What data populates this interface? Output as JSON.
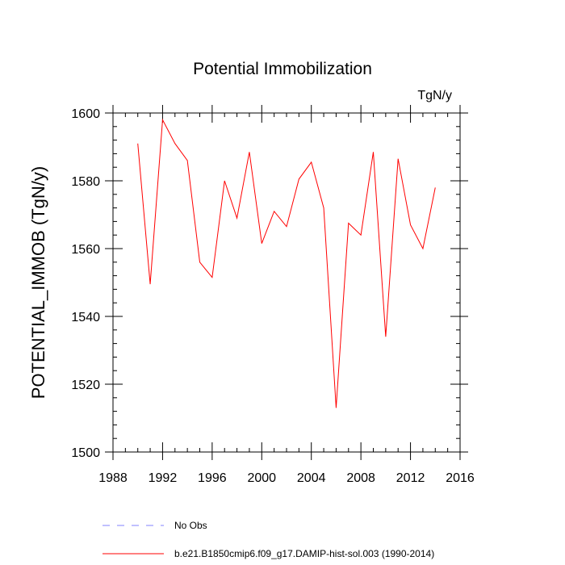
{
  "chart_data": {
    "type": "line",
    "title": "Potential Immobilization",
    "units_label": "TgN/y",
    "xlabel": "",
    "ylabel": "POTENTIAL_IMMOB  (TgN/y)",
    "xlim": [
      1988,
      2016
    ],
    "ylim": [
      1500,
      1600
    ],
    "xticks": [
      1988,
      1992,
      1996,
      2000,
      2004,
      2008,
      2012,
      2016
    ],
    "yticks": [
      1500,
      1520,
      1540,
      1560,
      1580,
      1600
    ],
    "grid": false,
    "legend_position": "bottom-left",
    "series": [
      {
        "name": "b.e21.B1850cmip6.f09_g17.DAMIP-hist-sol.003 (1990-2014)",
        "color": "#ff0000",
        "dash": "solid",
        "x": [
          1990,
          1991,
          1992,
          1993,
          1994,
          1995,
          1996,
          1997,
          1998,
          1999,
          2000,
          2001,
          2002,
          2003,
          2004,
          2005,
          2006,
          2007,
          2008,
          2009,
          2010,
          2011,
          2012,
          2013,
          2014
        ],
        "y": [
          1591,
          1549.5,
          1598,
          1591,
          1586,
          1556,
          1551.5,
          1580,
          1569,
          1588.5,
          1561.5,
          1571,
          1566.5,
          1580.5,
          1585.5,
          1572,
          1513,
          1567.5,
          1564,
          1588.5,
          1534,
          1586.5,
          1567,
          1560,
          1578
        ]
      }
    ],
    "legend": [
      {
        "label": "No Obs",
        "color": "#8080ff",
        "dash": "dashed"
      },
      {
        "label": "b.e21.B1850cmip6.f09_g17.DAMIP-hist-sol.003 (1990-2014)",
        "color": "#ff0000",
        "dash": "solid"
      }
    ]
  }
}
